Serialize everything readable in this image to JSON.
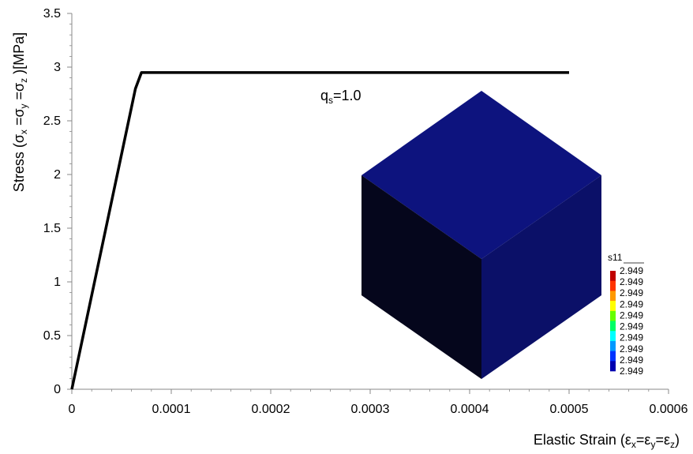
{
  "chart_data": {
    "type": "line",
    "ylabel": "Stress (σx =σy =σz )[MPa]",
    "ylabel_parts": {
      "prefix": "Stress (σ",
      "s1": "x",
      "m1": " =σ",
      "s2": "y",
      "m2": " =σ",
      "s3": "z",
      "suffix": " )[MPa]"
    },
    "xlabel": "Elastic Strain (εx=εy=εz)",
    "xlabel_parts": {
      "prefix": "Elastic Strain (ε",
      "s1": "x",
      "m1": "=ε",
      "s2": "y",
      "m2": "=ε",
      "s3": "z",
      "suffix": ")"
    },
    "xlim": [
      0,
      0.0006
    ],
    "ylim": [
      0,
      3.5
    ],
    "x_ticks": [
      0,
      0.0001,
      0.0002,
      0.0003,
      0.0004,
      0.0005,
      0.0006
    ],
    "x_tick_labels": [
      "0",
      "0.0001",
      "0.0002",
      "0.0003",
      "0.0004",
      "0.0005",
      "0.0006"
    ],
    "y_ticks": [
      0,
      0.5,
      1,
      1.5,
      2,
      2.5,
      3,
      3.5
    ],
    "y_tick_labels": [
      "0",
      "0.5",
      "1",
      "1.5",
      "2",
      "2.5",
      "3",
      "3.5"
    ],
    "x_minor_step": 2e-05,
    "y_minor_step": 0.1,
    "grid": false,
    "series": [
      {
        "color": "#000000",
        "x": [
          0,
          6.4e-05,
          7e-05,
          0.0005
        ],
        "y": [
          0,
          2.8,
          2.949,
          2.949
        ]
      }
    ],
    "annotation": {
      "main": "q",
      "sub": "s",
      "rest": "=1.0",
      "x": 0.00025,
      "y": 2.69
    },
    "inset": {
      "description_name": "cube-contour-plot",
      "top_color": "#0d137e",
      "left_color": "#05061c",
      "right_color": "#0b1068",
      "legend": {
        "title": "s11",
        "values": [
          "2.949",
          "2.949",
          "2.949",
          "2.949",
          "2.949",
          "2.949",
          "2.949",
          "2.949",
          "2.949",
          "2.949"
        ],
        "colors": [
          "#c00000",
          "#ff3300",
          "#ff9900",
          "#ffff00",
          "#66ff00",
          "#00ff66",
          "#00ffff",
          "#0099ff",
          "#0033ff",
          "#0000b0"
        ]
      }
    }
  }
}
